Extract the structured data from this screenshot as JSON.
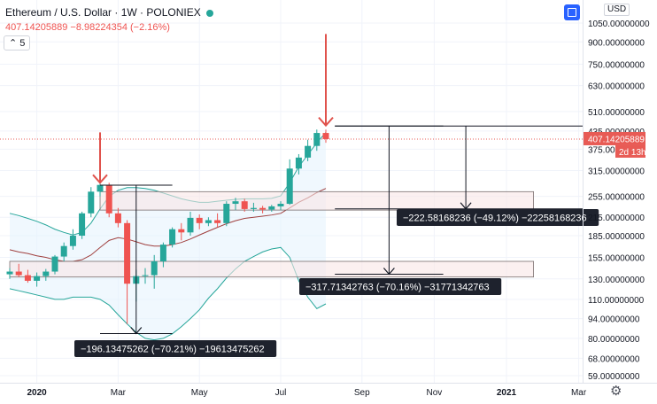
{
  "header": {
    "symbol_title": "Ethereum / U.S. Dollar · 1W · POLONIEX",
    "price_line": "407.14205889  −8.98224354 (−2.16%)",
    "indicator_count": "5",
    "currency": "USD"
  },
  "colors": {
    "up": "#26a69a",
    "down": "#ef5350",
    "band": "#26a69a",
    "band_mid": "#a0403f",
    "band_fill": "#e3f2fd",
    "zone": "#f8e6e6",
    "arrow": "#e0524c",
    "price_tag": "#e85b55",
    "measure_bg": "#1e222d"
  },
  "chart_data": {
    "type": "candlestick",
    "title": "Ethereum / U.S. Dollar · 1W · POLONIEX",
    "price_scale": "log",
    "currency": "USD",
    "y_ticks": [
      1050,
      900,
      750,
      630,
      510,
      435,
      375,
      315,
      255,
      215,
      185,
      155,
      130,
      110,
      94,
      80,
      68,
      59
    ],
    "y_tick_labels": [
      "1050.00000000",
      "900.00000000",
      "750.00000000",
      "630.00000000",
      "510.00000000",
      "435.00000000",
      "375.00000000",
      "315.00000000",
      "255.00000000",
      "215.00000000",
      "185.00000000",
      "155.00000000",
      "130.00000000",
      "110.00000000",
      "94.00000000",
      "80.00000000",
      "68.00000000",
      "59.00000000"
    ],
    "x_labels": [
      {
        "label": "2020",
        "week": 3,
        "bold": true
      },
      {
        "label": "Mar",
        "week": 12,
        "bold": false
      },
      {
        "label": "May",
        "week": 21,
        "bold": false
      },
      {
        "label": "Jul",
        "week": 30,
        "bold": false
      },
      {
        "label": "Sep",
        "week": 39,
        "bold": false
      },
      {
        "label": "Nov",
        "week": 47,
        "bold": false
      },
      {
        "label": "2021",
        "week": 55,
        "bold": true
      },
      {
        "label": "Mar",
        "week": 63,
        "bold": false
      }
    ],
    "last_price": 407.14205889,
    "last_price_label": "407.14205889",
    "countdown": "2d 13h",
    "candles": [
      {
        "o": 135,
        "h": 142,
        "l": 130,
        "c": 138
      },
      {
        "o": 138,
        "h": 147,
        "l": 132,
        "c": 134
      },
      {
        "o": 134,
        "h": 140,
        "l": 126,
        "c": 128
      },
      {
        "o": 128,
        "h": 137,
        "l": 122,
        "c": 133
      },
      {
        "o": 133,
        "h": 141,
        "l": 128,
        "c": 138
      },
      {
        "o": 138,
        "h": 158,
        "l": 135,
        "c": 156
      },
      {
        "o": 156,
        "h": 175,
        "l": 150,
        "c": 170
      },
      {
        "o": 170,
        "h": 195,
        "l": 165,
        "c": 185
      },
      {
        "o": 185,
        "h": 225,
        "l": 180,
        "c": 222
      },
      {
        "o": 222,
        "h": 275,
        "l": 215,
        "c": 265
      },
      {
        "o": 265,
        "h": 288,
        "l": 255,
        "c": 280
      },
      {
        "o": 280,
        "h": 285,
        "l": 215,
        "c": 222
      },
      {
        "o": 222,
        "h": 232,
        "l": 198,
        "c": 205
      },
      {
        "o": 205,
        "h": 210,
        "l": 90,
        "c": 125
      },
      {
        "o": 125,
        "h": 140,
        "l": 108,
        "c": 133
      },
      {
        "o": 133,
        "h": 142,
        "l": 125,
        "c": 134
      },
      {
        "o": 134,
        "h": 158,
        "l": 120,
        "c": 150
      },
      {
        "o": 150,
        "h": 175,
        "l": 143,
        "c": 172
      },
      {
        "o": 172,
        "h": 198,
        "l": 168,
        "c": 195
      },
      {
        "o": 195,
        "h": 205,
        "l": 178,
        "c": 190
      },
      {
        "o": 190,
        "h": 225,
        "l": 185,
        "c": 214
      },
      {
        "o": 214,
        "h": 220,
        "l": 195,
        "c": 205
      },
      {
        "o": 205,
        "h": 215,
        "l": 200,
        "c": 210
      },
      {
        "o": 210,
        "h": 222,
        "l": 198,
        "c": 205
      },
      {
        "o": 205,
        "h": 245,
        "l": 200,
        "c": 240
      },
      {
        "o": 240,
        "h": 252,
        "l": 228,
        "c": 245
      },
      {
        "o": 245,
        "h": 250,
        "l": 225,
        "c": 230
      },
      {
        "o": 230,
        "h": 242,
        "l": 225,
        "c": 232
      },
      {
        "o": 232,
        "h": 236,
        "l": 222,
        "c": 229
      },
      {
        "o": 229,
        "h": 238,
        "l": 225,
        "c": 235
      },
      {
        "o": 235,
        "h": 245,
        "l": 228,
        "c": 240
      },
      {
        "o": 240,
        "h": 345,
        "l": 238,
        "c": 320
      },
      {
        "o": 320,
        "h": 360,
        "l": 305,
        "c": 350
      },
      {
        "o": 350,
        "h": 405,
        "l": 340,
        "c": 385
      },
      {
        "o": 385,
        "h": 440,
        "l": 370,
        "c": 428
      },
      {
        "o": 428,
        "h": 440,
        "l": 395,
        "c": 407.14
      }
    ],
    "bollinger": {
      "upper": [
        222,
        218,
        213,
        208,
        202,
        195,
        190,
        186,
        190,
        205,
        230,
        255,
        268,
        274,
        274,
        272,
        268,
        262,
        256,
        250,
        246,
        243,
        243,
        245,
        247,
        249,
        250,
        250,
        250,
        251,
        256,
        285,
        325,
        358,
        395,
        430
      ],
      "middle": [
        165,
        162,
        160,
        157,
        155,
        152,
        150,
        150,
        152,
        158,
        168,
        178,
        182,
        180,
        176,
        172,
        170,
        170,
        172,
        175,
        180,
        186,
        192,
        198,
        204,
        209,
        213,
        215,
        217,
        219,
        222,
        232,
        243,
        252,
        263,
        272
      ],
      "lower": [
        120,
        118,
        116,
        114,
        112,
        110,
        110,
        112,
        112,
        112,
        110,
        105,
        97,
        90,
        84,
        80,
        79,
        80,
        83,
        88,
        94,
        101,
        111,
        120,
        131,
        141,
        150,
        156,
        162,
        166,
        168,
        155,
        128,
        112,
        102,
        106
      ]
    },
    "zones": [
      {
        "from_week": 10,
        "to_week": 58,
        "top": 265,
        "bottom": 228
      },
      {
        "from_week": 0,
        "to_week": 58,
        "top": 150,
        "bottom": 132
      }
    ],
    "measurements": [
      {
        "label": "−196.13475262 (−70.21%) −19613475262",
        "from_week": 10,
        "to_week": 18,
        "top": 279.33,
        "bottom": 83.2
      },
      {
        "label": "−317.71342763 (−70.16%) −31771342763",
        "from_week": 36,
        "to_week": 48,
        "top": 452.8,
        "bottom": 135.09
      },
      {
        "label": "−222.58168236 (−49.12%) −22258168236",
        "from_week": 36,
        "to_week": 65,
        "top": 452.8,
        "bottom": 230.22
      }
    ],
    "arrows": [
      {
        "week": 10,
        "from_price": 430,
        "to_price": 285
      },
      {
        "week": 35,
        "from_price": 960,
        "to_price": 455
      }
    ],
    "grid": true
  }
}
